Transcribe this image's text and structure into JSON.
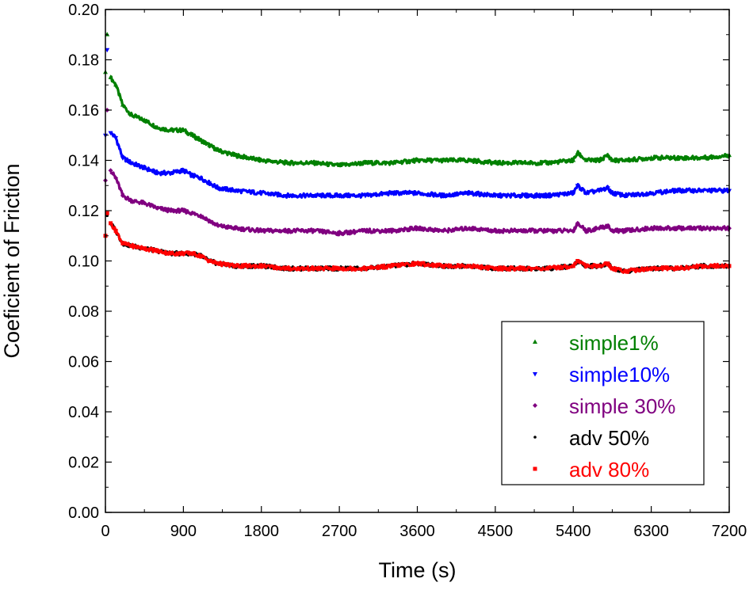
{
  "chart_data": {
    "type": "scatter",
    "title": "",
    "xlabel": "Time (s)",
    "ylabel": "Coeficient of Friction",
    "xlim": [
      0,
      7200
    ],
    "ylim": [
      0,
      0.2
    ],
    "x_ticks": [
      0,
      900,
      1800,
      2700,
      3600,
      4500,
      5400,
      6300,
      7200
    ],
    "y_ticks": [
      0.0,
      0.02,
      0.04,
      0.06,
      0.08,
      0.1,
      0.12,
      0.14,
      0.16,
      0.18,
      0.2
    ],
    "x_tick_labels": [
      "0",
      "900",
      "1800",
      "2700",
      "3600",
      "4500",
      "5400",
      "6300",
      "7200"
    ],
    "y_tick_labels": [
      "0.00",
      "0.02",
      "0.04",
      "0.06",
      "0.08",
      "0.10",
      "0.12",
      "0.14",
      "0.16",
      "0.18",
      "0.20"
    ],
    "grid": false,
    "legend_position": "lower-right",
    "series": [
      {
        "name": "simple1%",
        "color": "#008000",
        "marker": "triangle-up",
        "x": [
          0,
          20,
          60,
          120,
          200,
          300,
          450,
          600,
          750,
          900,
          1000,
          1100,
          1200,
          1300,
          1500,
          1800,
          2100,
          2400,
          2700,
          3000,
          3300,
          3600,
          3900,
          4200,
          4500,
          4800,
          5100,
          5400,
          5450,
          5550,
          5700,
          5800,
          5850,
          6000,
          6300,
          6600,
          6900,
          7200
        ],
        "y": [
          0.175,
          0.19,
          0.173,
          0.17,
          0.162,
          0.158,
          0.156,
          0.153,
          0.152,
          0.152,
          0.15,
          0.148,
          0.146,
          0.144,
          0.142,
          0.14,
          0.139,
          0.139,
          0.138,
          0.139,
          0.139,
          0.14,
          0.14,
          0.14,
          0.139,
          0.139,
          0.139,
          0.14,
          0.143,
          0.14,
          0.14,
          0.142,
          0.14,
          0.14,
          0.141,
          0.141,
          0.141,
          0.142
        ]
      },
      {
        "name": "simple10%",
        "color": "#0000ff",
        "marker": "triangle-down",
        "x": [
          0,
          20,
          60,
          120,
          200,
          300,
          450,
          600,
          750,
          900,
          1000,
          1100,
          1200,
          1300,
          1500,
          1800,
          2100,
          2400,
          2700,
          3000,
          3300,
          3600,
          3900,
          4200,
          4500,
          4800,
          5100,
          5400,
          5450,
          5550,
          5700,
          5800,
          5850,
          6000,
          6300,
          6600,
          6900,
          7200
        ],
        "y": [
          0.15,
          0.184,
          0.151,
          0.149,
          0.141,
          0.139,
          0.137,
          0.135,
          0.135,
          0.136,
          0.134,
          0.133,
          0.131,
          0.129,
          0.128,
          0.127,
          0.126,
          0.126,
          0.126,
          0.126,
          0.127,
          0.127,
          0.126,
          0.127,
          0.126,
          0.126,
          0.126,
          0.127,
          0.13,
          0.127,
          0.128,
          0.129,
          0.127,
          0.126,
          0.127,
          0.128,
          0.128,
          0.128
        ]
      },
      {
        "name": "simple 30%",
        "color": "#800080",
        "marker": "diamond",
        "x": [
          0,
          20,
          60,
          120,
          200,
          300,
          450,
          600,
          750,
          900,
          1000,
          1100,
          1200,
          1300,
          1500,
          1800,
          2100,
          2400,
          2700,
          3000,
          3300,
          3600,
          3900,
          4200,
          4500,
          4800,
          5100,
          5400,
          5450,
          5550,
          5700,
          5800,
          5850,
          6000,
          6300,
          6600,
          6900,
          7200
        ],
        "y": [
          0.132,
          0.16,
          0.136,
          0.133,
          0.126,
          0.124,
          0.123,
          0.121,
          0.12,
          0.12,
          0.119,
          0.118,
          0.116,
          0.114,
          0.113,
          0.112,
          0.112,
          0.112,
          0.111,
          0.112,
          0.112,
          0.113,
          0.112,
          0.113,
          0.112,
          0.112,
          0.112,
          0.112,
          0.115,
          0.112,
          0.113,
          0.114,
          0.112,
          0.112,
          0.113,
          0.113,
          0.113,
          0.113
        ]
      },
      {
        "name": "adv 50%",
        "color": "#000000",
        "marker": "dot",
        "x": [
          0,
          20,
          60,
          120,
          200,
          300,
          450,
          600,
          750,
          900,
          1000,
          1100,
          1200,
          1300,
          1500,
          1800,
          2100,
          2400,
          2700,
          3000,
          3300,
          3600,
          3900,
          4200,
          4500,
          4800,
          5100,
          5400,
          5450,
          5550,
          5700,
          5800,
          5850,
          6000,
          6300,
          6600,
          6900,
          7200
        ],
        "y": [
          0.11,
          0.118,
          0.115,
          0.112,
          0.107,
          0.106,
          0.105,
          0.104,
          0.103,
          0.103,
          0.103,
          0.102,
          0.1,
          0.099,
          0.098,
          0.098,
          0.097,
          0.097,
          0.097,
          0.097,
          0.098,
          0.099,
          0.098,
          0.098,
          0.097,
          0.097,
          0.097,
          0.098,
          0.1,
          0.098,
          0.098,
          0.099,
          0.097,
          0.096,
          0.097,
          0.097,
          0.098,
          0.098
        ]
      },
      {
        "name": "adv 80%",
        "color": "#ff0000",
        "marker": "square",
        "x": [
          0,
          20,
          60,
          120,
          200,
          300,
          450,
          600,
          750,
          900,
          1000,
          1100,
          1200,
          1300,
          1500,
          1800,
          2100,
          2400,
          2700,
          3000,
          3300,
          3600,
          3900,
          4200,
          4500,
          4800,
          5100,
          5400,
          5450,
          5550,
          5700,
          5800,
          5850,
          6000,
          6300,
          6600,
          6900,
          7200
        ],
        "y": [
          0.11,
          0.119,
          0.115,
          0.112,
          0.107,
          0.106,
          0.105,
          0.104,
          0.103,
          0.103,
          0.103,
          0.102,
          0.1,
          0.099,
          0.098,
          0.098,
          0.097,
          0.097,
          0.097,
          0.097,
          0.098,
          0.099,
          0.098,
          0.098,
          0.097,
          0.097,
          0.097,
          0.098,
          0.1,
          0.098,
          0.098,
          0.099,
          0.097,
          0.096,
          0.097,
          0.097,
          0.098,
          0.098
        ]
      }
    ]
  }
}
